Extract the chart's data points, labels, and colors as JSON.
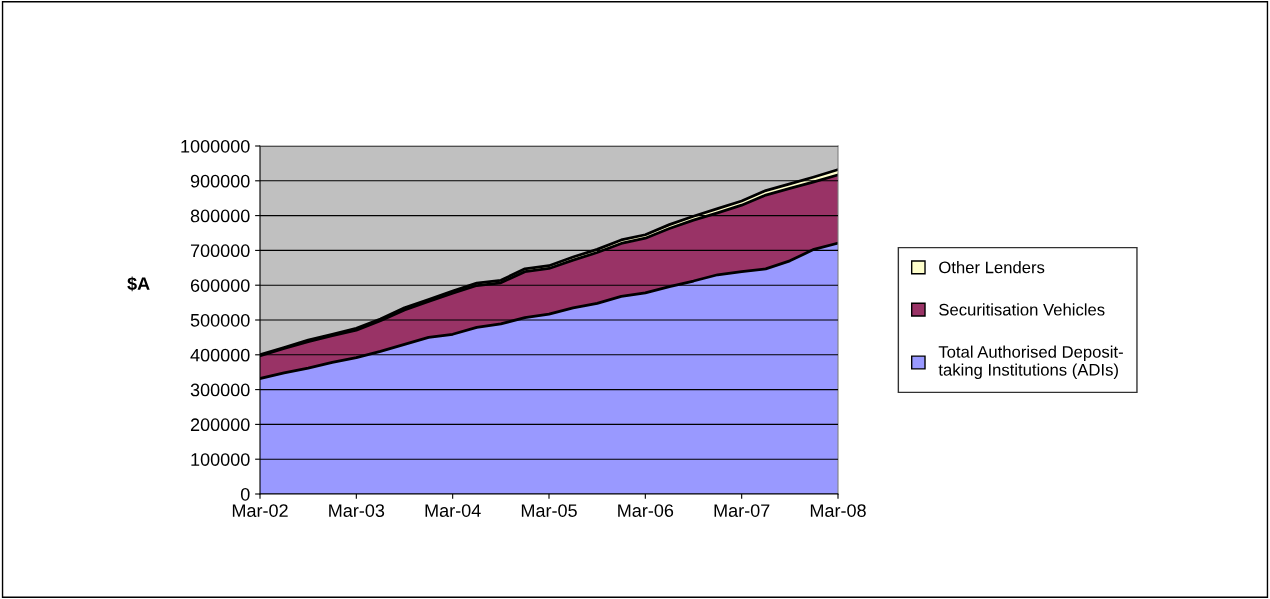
{
  "chart_data": {
    "type": "area",
    "stacked": true,
    "ylabel": "$A",
    "categories": [
      "Mar-02",
      null,
      null,
      null,
      "Mar-03",
      null,
      null,
      null,
      "Mar-04",
      null,
      null,
      null,
      "Mar-05",
      null,
      null,
      null,
      "Mar-06",
      null,
      null,
      null,
      "Mar-07",
      null,
      null,
      null,
      "Mar-08"
    ],
    "series": [
      {
        "name": "Total Authorised Deposit-taking Institutions (ADIs)",
        "color": "#9999ff",
        "values": [
          332000,
          348000,
          362000,
          378000,
          392000,
          410000,
          430000,
          450000,
          459000,
          479000,
          489000,
          507000,
          517000,
          535000,
          548000,
          568000,
          578000,
          596000,
          612000,
          630000,
          639000,
          647000,
          670000,
          703000,
          721000
        ]
      },
      {
        "name": "Securitisation Vehicles",
        "color": "#993366",
        "values": [
          65000,
          70000,
          76000,
          77000,
          79000,
          88000,
          99000,
          103000,
          118000,
          120000,
          118000,
          132000,
          131000,
          137000,
          146000,
          152000,
          157000,
          167000,
          175000,
          178000,
          191000,
          212000,
          208000,
          194000,
          196000
        ]
      },
      {
        "name": "Other Lenders",
        "color": "#ffffcc",
        "values": [
          3000,
          3000,
          4000,
          4000,
          5000,
          5000,
          6000,
          6000,
          6000,
          7000,
          7000,
          8000,
          8000,
          9000,
          9000,
          10000,
          10000,
          11000,
          11000,
          12000,
          12000,
          13000,
          13000,
          14000,
          15000
        ]
      }
    ],
    "ylim": [
      0,
      1000000
    ],
    "yticks": [
      0,
      100000,
      200000,
      300000,
      400000,
      500000,
      600000,
      700000,
      800000,
      900000,
      1000000
    ],
    "grid": "y",
    "legend": "right"
  }
}
